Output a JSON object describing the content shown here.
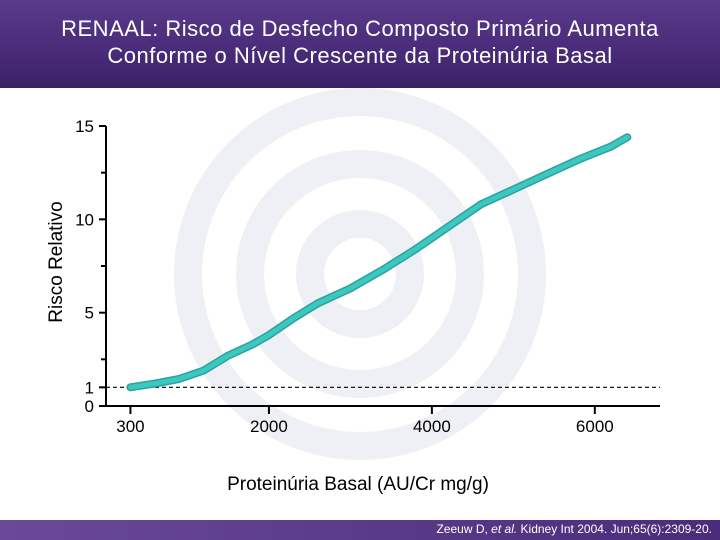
{
  "header": {
    "title_line1": "RENAAL: Risco de Desfecho Composto Primário Aumenta",
    "title_line2": "Conforme o Nível Crescente da Proteinúria Basal"
  },
  "colors": {
    "header": "#4a2c7a",
    "line": "#3cc7c0",
    "line_dark": "#2aa39c"
  },
  "chart_data": {
    "type": "line",
    "title": "RENAAL: Risco de Desfecho Composto Primário Aumenta Conforme o Nível Crescente da Proteinúria Basal",
    "xlabel": "Proteinúria Basal (AU/Cr mg/g)",
    "ylabel": "Risco Relativo",
    "xlim": [
      0,
      6800
    ],
    "ylim": [
      0,
      15
    ],
    "x_ticks": [
      300,
      2000,
      4000,
      6000
    ],
    "y_ticks": [
      0,
      1,
      5,
      10,
      15
    ],
    "reference_line": {
      "y": 1,
      "style": "dashed"
    },
    "series": [
      {
        "x": [
          300,
          600,
          900,
          1200,
          1500,
          1800,
          2000,
          2300,
          2600,
          3000,
          3400,
          3800,
          4200,
          4600,
          5000,
          5400,
          5800,
          6200,
          6400
        ],
        "values": [
          1.0,
          1.2,
          1.45,
          1.9,
          2.7,
          3.3,
          3.8,
          4.7,
          5.5,
          6.3,
          7.3,
          8.4,
          9.6,
          10.8,
          11.6,
          12.4,
          13.2,
          13.9,
          14.4
        ]
      }
    ]
  },
  "citation": {
    "authors": "Zeeuw D, ",
    "etal": "et al.",
    "rest": " Kidney Int 2004. Jun;65(6):2309-20."
  }
}
